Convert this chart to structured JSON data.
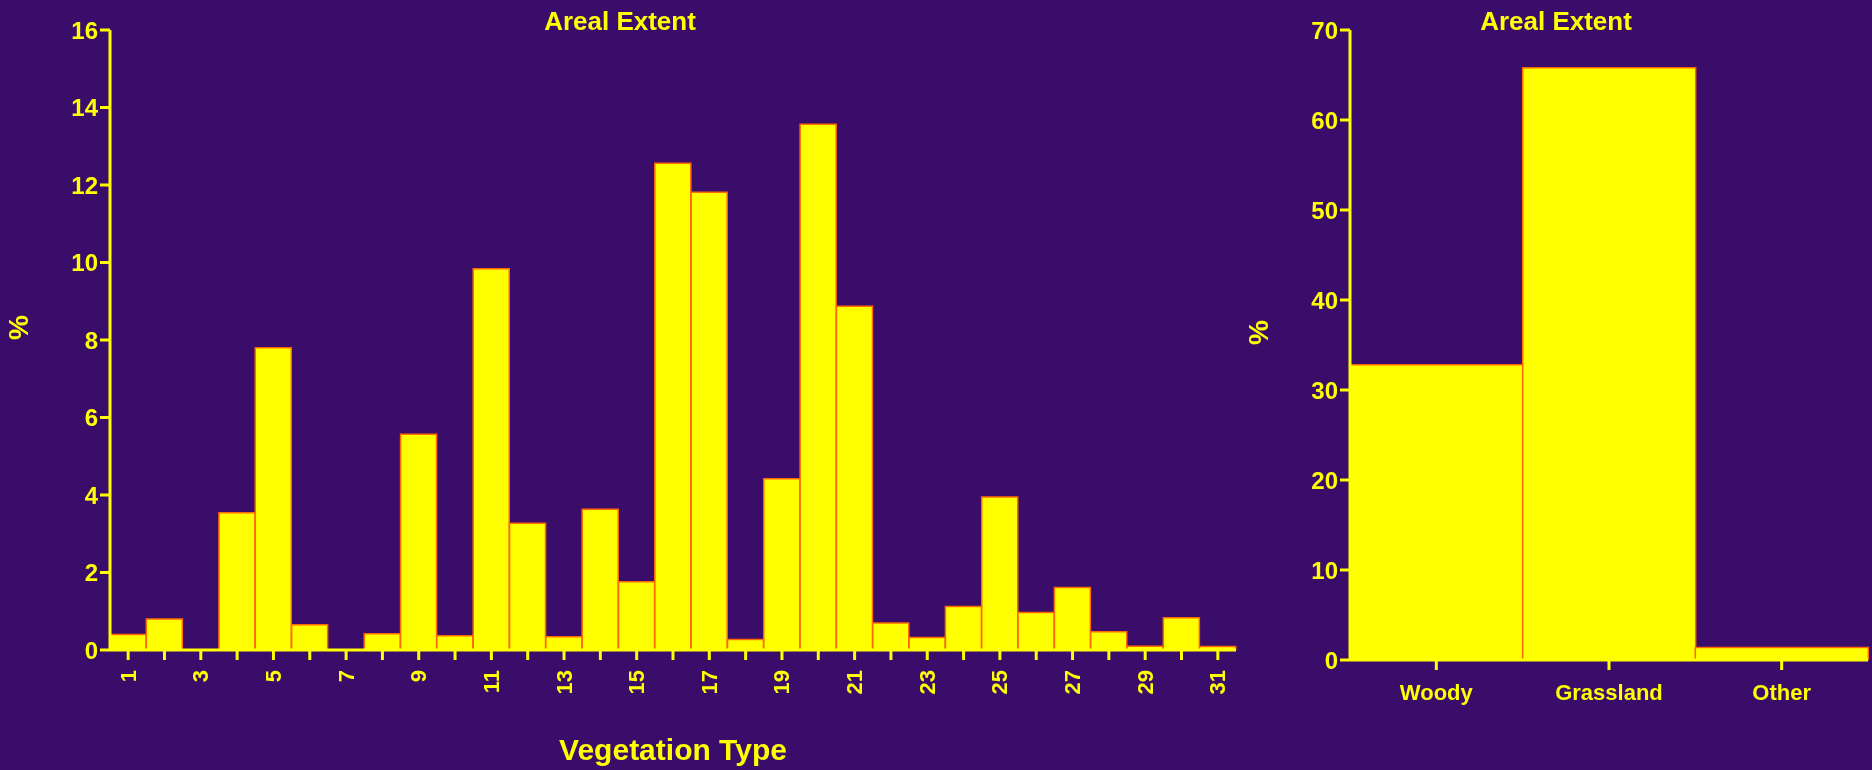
{
  "chart_data": [
    {
      "type": "bar",
      "title": "Areal Extent",
      "xlabel": "Vegetation Type",
      "ylabel": "%",
      "categories": [
        "1",
        null,
        "3",
        null,
        "5",
        null,
        "7",
        null,
        "9",
        null,
        "11",
        null,
        "13",
        null,
        "15",
        null,
        "17",
        null,
        "19",
        null,
        "21",
        null,
        "23",
        null,
        "25",
        null,
        "27",
        null,
        "29",
        null,
        "31"
      ],
      "values": [
        0.4,
        0.8,
        0,
        3.54,
        7.8,
        0.65,
        0,
        0.42,
        5.57,
        0.37,
        9.84,
        3.27,
        0.34,
        3.63,
        1.76,
        12.56,
        11.81,
        0.27,
        4.42,
        13.57,
        8.87,
        0.7,
        0.32,
        1.12,
        3.95,
        0.97,
        1.61,
        0.47,
        0.1,
        0.83,
        0.09
      ],
      "color": "#ffff00",
      "ylim": [
        0,
        16
      ],
      "yticks": [
        0,
        2,
        4,
        6,
        8,
        10,
        12,
        14,
        16
      ],
      "grid": false,
      "legend": false
    },
    {
      "type": "bar",
      "title": "Areal Extent",
      "ylabel": "%",
      "categories": [
        "Woody",
        "Grassland",
        "Other"
      ],
      "values": [
        32.8,
        65.8,
        1.4
      ],
      "color": "#ffff00",
      "ylim": [
        0,
        70
      ],
      "yticks": [
        0,
        10,
        20,
        30,
        40,
        50,
        60,
        70
      ],
      "grid": false,
      "legend": false
    }
  ]
}
